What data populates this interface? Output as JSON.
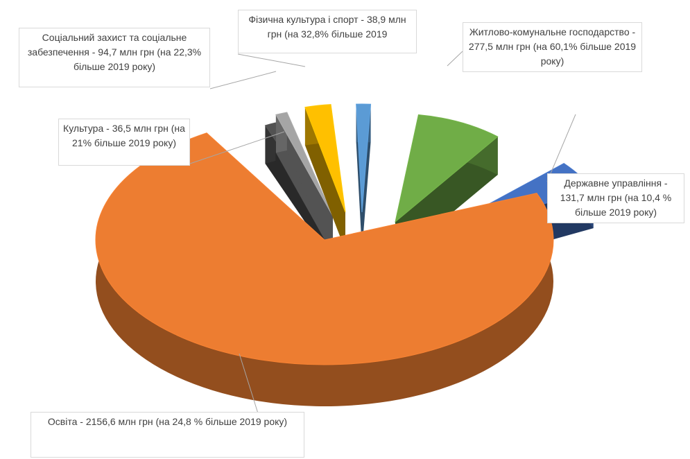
{
  "chart_data": {
    "type": "pie",
    "style": "3d-exploded",
    "unit": "млн грн",
    "slices": [
      {
        "name": "Освіта",
        "value": 2156.6,
        "color": "#ed7d31",
        "label": "Освіта - 2156,6 млн грн (на 24,8 % більше 2019 року)"
      },
      {
        "name": "Культура",
        "value": 36.5,
        "color": "#525252",
        "label": "Культура - 36,5 млн грн (на 21% більше 2019 року)"
      },
      {
        "name": "Соціальний захист та соціальне забезпечення",
        "value": 94.7,
        "color": "#a5a5a5",
        "label": "Соціальний захист та соціальне забезпечення - 94,7 млн грн (на 22,3% більше 2019 року)"
      },
      {
        "name": "Фізична культура і спорт (жовтий сегмент)",
        "value": 38.9,
        "color": "#ffc000",
        "label": ""
      },
      {
        "name": "Фізична культура і спорт",
        "value": 38.9,
        "color": "#5b9bd5",
        "label": "Фізична культура і спорт - 38,9 млн грн (на 32,8% більше 2019"
      },
      {
        "name": "Житлово-комунальне господарство",
        "value": 277.5,
        "color": "#70ad47",
        "label": "Житлово-комунальне господарство - 277,5 млн грн (на 60,1% більше 2019 року)"
      },
      {
        "name": "Державне управління",
        "value": 131.7,
        "color": "#4472c4",
        "label": "Державне управління - 131,7 млн грн (на 10,4 % більше 2019 року)"
      }
    ]
  },
  "labels": {
    "osvita": "Освіта - 2156,6 млн грн (на 24,8 % більше 2019 року)",
    "kultura": "Культура - 36,5 млн грн (на 21% більше 2019 року)",
    "social": "Соціальний захист та соціальне забезпечення - 94,7 млн грн (на 22,3% більше 2019 року)",
    "sport": "Фізична культура і спорт - 38,9 млн грн (на 32,8% більше 2019",
    "zhkg": "Житлово-комунальне господарство - 277,5 млн грн (на 60,1% більше 2019 року)",
    "derzh": "Державне управління - 131,7 млн грн (на 10,4 % більше 2019 року)"
  }
}
